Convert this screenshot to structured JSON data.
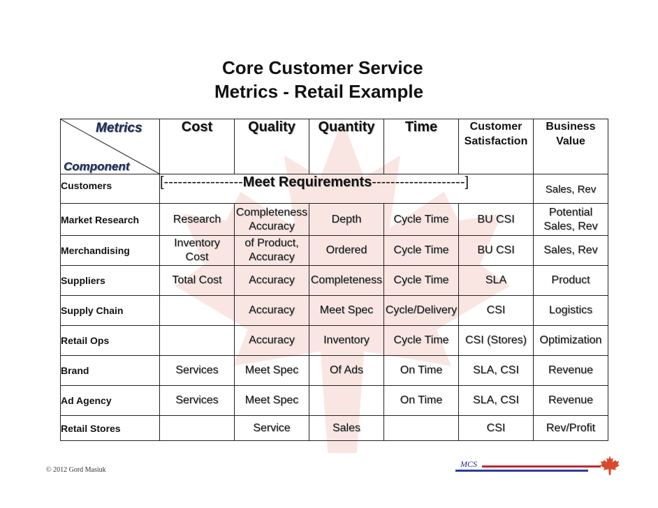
{
  "title": {
    "line1": "Core Customer Service",
    "line2": "Metrics - Retail Example"
  },
  "table": {
    "corner": {
      "metrics_label": "Metrics",
      "component_label": "Component"
    },
    "headers": [
      "Cost",
      "Quality",
      "Quantity",
      "Time",
      "Customer\nSatisfaction",
      "Business\nValue"
    ],
    "customers_row": {
      "label": "Customers",
      "span_left": "[-----------------",
      "span_bold": "Meet Requirements",
      "span_right": "--------------------]",
      "business_value": "Sales, Rev"
    },
    "rows": [
      {
        "label": "Market Research",
        "cost": "Research",
        "quality": "Completeness\nAccuracy",
        "quantity": "Depth",
        "time": "Cycle Time",
        "csat": "BU CSI",
        "value": "Potential\nSales, Rev"
      },
      {
        "label": "Merchandising",
        "cost": "Inventory\nCost",
        "quality": "of Product,\nAccuracy",
        "quantity": "Ordered",
        "time": "Cycle Time",
        "csat": "BU CSI",
        "value": "Sales, Rev"
      },
      {
        "label": "Suppliers",
        "cost": "Total Cost",
        "quality": "Accuracy",
        "quantity": "Completeness",
        "time": "Cycle Time",
        "csat": "SLA",
        "value": "Product"
      },
      {
        "label": "Supply Chain",
        "cost": "",
        "quality": "Accuracy",
        "quantity": "Meet Spec",
        "time": "Cycle/Delivery",
        "csat": "CSI",
        "value": "Logistics"
      },
      {
        "label": "Retail Ops",
        "cost": "",
        "quality": "Accuracy",
        "quantity": "Inventory",
        "time": "Cycle Time",
        "csat": "CSI (Stores)",
        "value": "Optimization"
      },
      {
        "label": "Brand",
        "cost": "Services",
        "quality": "Meet Spec",
        "quantity": "Of Ads",
        "time": "On Time",
        "csat": "SLA, CSI",
        "value": "Revenue"
      },
      {
        "label": "Ad Agency",
        "cost": "Services",
        "quality": "Meet Spec",
        "quantity": "",
        "time": "On Time",
        "csat": "SLA, CSI",
        "value": "Revenue"
      },
      {
        "label": "Retail Stores",
        "cost": "",
        "quality": "Service",
        "quantity": "Sales",
        "time": "",
        "csat": "CSI",
        "value": "Rev/Profit"
      }
    ]
  },
  "footer": {
    "copyright": "© 2012 Gord Masiuk",
    "logo_text": "MCS"
  },
  "colors": {
    "logo_red": "#c0282c",
    "logo_blue": "#2a3a9a",
    "leaf": "#d9492e"
  }
}
